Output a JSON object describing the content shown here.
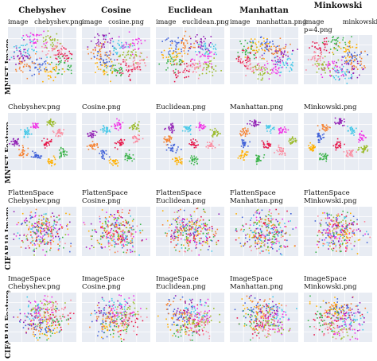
{
  "columns": [
    "Chebyshev",
    "Cosine",
    "Euclidean",
    "Manhattan",
    "Minkowski"
  ],
  "rows": [
    "MNIST Image",
    "MNIST Feature",
    "CIFAR10 Image",
    "CIFAR10 Feature"
  ],
  "captions": [
    [
      "image chebyshev.png",
      "image cosine.png",
      "image euclidean.png",
      "image manhattan.png",
      "image minkowski p=4.png"
    ],
    [
      "Chebyshev.png",
      "Cosine.png",
      "Euclidean.png",
      "Manhattan.png",
      "Minkowski.png"
    ],
    [
      "FlattenSpace Chebyshev.png",
      "FlattenSpace Cosine.png",
      "FlattenSpace Euclidean.png",
      "FlattenSpace Manhattan.png",
      "FlattenSpace Minkowski.png"
    ],
    [
      "ImageSpace Chebyshev.png",
      "ImageSpace Cosine.png",
      "ImageSpace Euclidean.png",
      "ImageSpace Manhattan.png",
      "ImageSpace Minkowski.png"
    ]
  ],
  "palette": [
    "#e6194b",
    "#3cb44b",
    "#ffb000",
    "#4363d8",
    "#f58231",
    "#911eb4",
    "#46c9e8",
    "#f032e6",
    "#9bbb2a",
    "#fa8ca0"
  ]
}
